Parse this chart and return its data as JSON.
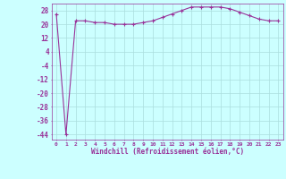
{
  "x": [
    0,
    1,
    2,
    3,
    4,
    5,
    6,
    7,
    8,
    9,
    10,
    11,
    12,
    13,
    14,
    15,
    16,
    17,
    18,
    19,
    20,
    21,
    22,
    23
  ],
  "y": [
    26,
    -44,
    22,
    22,
    21,
    21,
    20,
    20,
    20,
    21,
    22,
    24,
    26,
    28,
    30,
    30,
    30,
    30,
    29,
    27,
    25,
    23,
    22,
    22
  ],
  "line_color": "#993399",
  "marker": "+",
  "bg_color": "#ccffff",
  "grid_color": "#aadddd",
  "xlabel": "Windchill (Refroidissement éolien,°C)",
  "ylabel_ticks": [
    28,
    20,
    12,
    4,
    -4,
    -12,
    -20,
    -28,
    -36,
    -44
  ],
  "xtick_labels": [
    "0",
    "1",
    "2",
    "3",
    "4",
    "5",
    "6",
    "7",
    "8",
    "9",
    "10",
    "11",
    "12",
    "13",
    "14",
    "15",
    "16",
    "17",
    "18",
    "19",
    "20",
    "21",
    "22",
    "23"
  ],
  "ylim": [
    -47,
    32
  ],
  "xlim": [
    -0.5,
    23.5
  ],
  "tick_color": "#993399",
  "label_color": "#993399"
}
